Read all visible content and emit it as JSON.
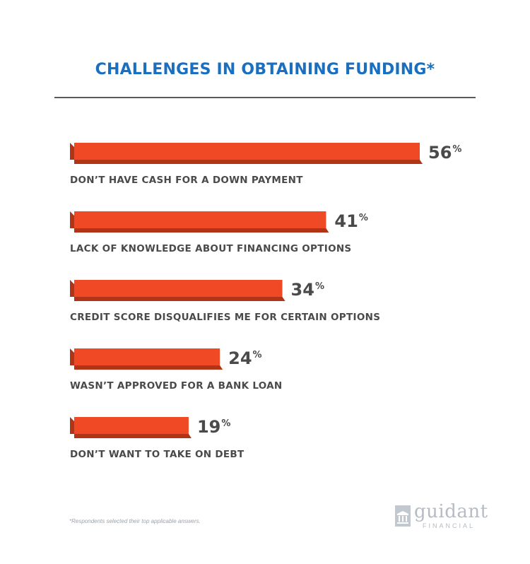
{
  "chart_data": {
    "type": "bar",
    "orientation": "horizontal",
    "title": "CHALLENGES IN OBTAINING FUNDING*",
    "categories": [
      "DON’T HAVE CASH FOR A DOWN PAYMENT",
      "LACK OF KNOWLEDGE ABOUT FINANCING OPTIONS",
      "CREDIT SCORE DISQUALIFIES ME FOR CERTAIN OPTIONS",
      "WASN’T APPROVED FOR A BANK LOAN",
      "DON’T WANT TO TAKE ON DEBT"
    ],
    "values": [
      56,
      41,
      34,
      24,
      19
    ],
    "value_labels": [
      "56",
      "41",
      "34",
      "24",
      "19"
    ],
    "value_suffix": "%",
    "bar_color": "#ef4a25",
    "bar_shadow_color": "#b23416",
    "grid": false,
    "legend": "none"
  },
  "footnote": "*Respondents selected their top applicable answers.",
  "logo": {
    "main": "guidant",
    "sub": "FINANCIAL",
    "icon": "guidant-logo-icon"
  },
  "colors": {
    "title": "#1a6fc0",
    "label": "#4a4a4a",
    "rule": "#5a5a5a"
  }
}
